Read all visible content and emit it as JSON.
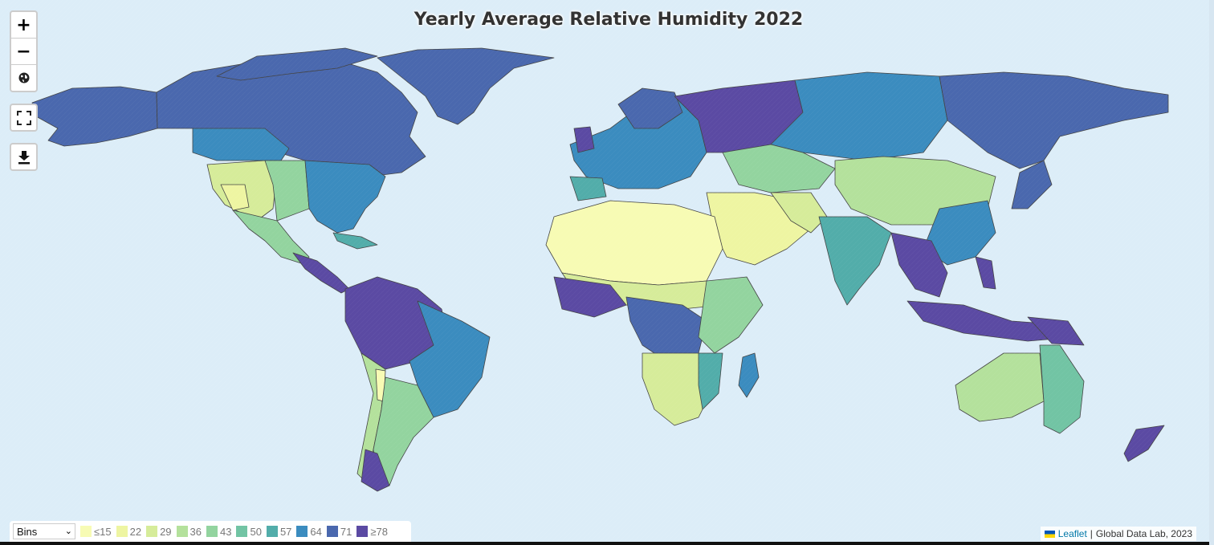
{
  "map": {
    "title": "Yearly Average Relative Humidity 2022",
    "background_color": "#dcedf8",
    "layer_type": "choropleth"
  },
  "controls": {
    "zoom_in_label": "+",
    "zoom_out_label": "−",
    "world_icon": "globe-icon",
    "fullscreen_icon": "fullscreen-icon",
    "download_icon": "download-icon"
  },
  "legend": {
    "mode_selected": "Bins",
    "mode_options": [
      "Bins"
    ],
    "bins": [
      {
        "label": "≤15",
        "color": "#f7fbb4"
      },
      {
        "label": "22",
        "color": "#eef5a2"
      },
      {
        "label": "29",
        "color": "#d6ec9a"
      },
      {
        "label": "36",
        "color": "#b4e19c"
      },
      {
        "label": "43",
        "color": "#93d49f"
      },
      {
        "label": "50",
        "color": "#72c4a4"
      },
      {
        "label": "57",
        "color": "#52adaa"
      },
      {
        "label": "64",
        "color": "#3b8cbf"
      },
      {
        "label": "71",
        "color": "#4a68ae"
      },
      {
        "label": "≥78",
        "color": "#5b4aa3"
      }
    ]
  },
  "attribution": {
    "leaflet_link": "Leaflet",
    "separator": "|",
    "source": "Global Data Lab, 2023"
  }
}
